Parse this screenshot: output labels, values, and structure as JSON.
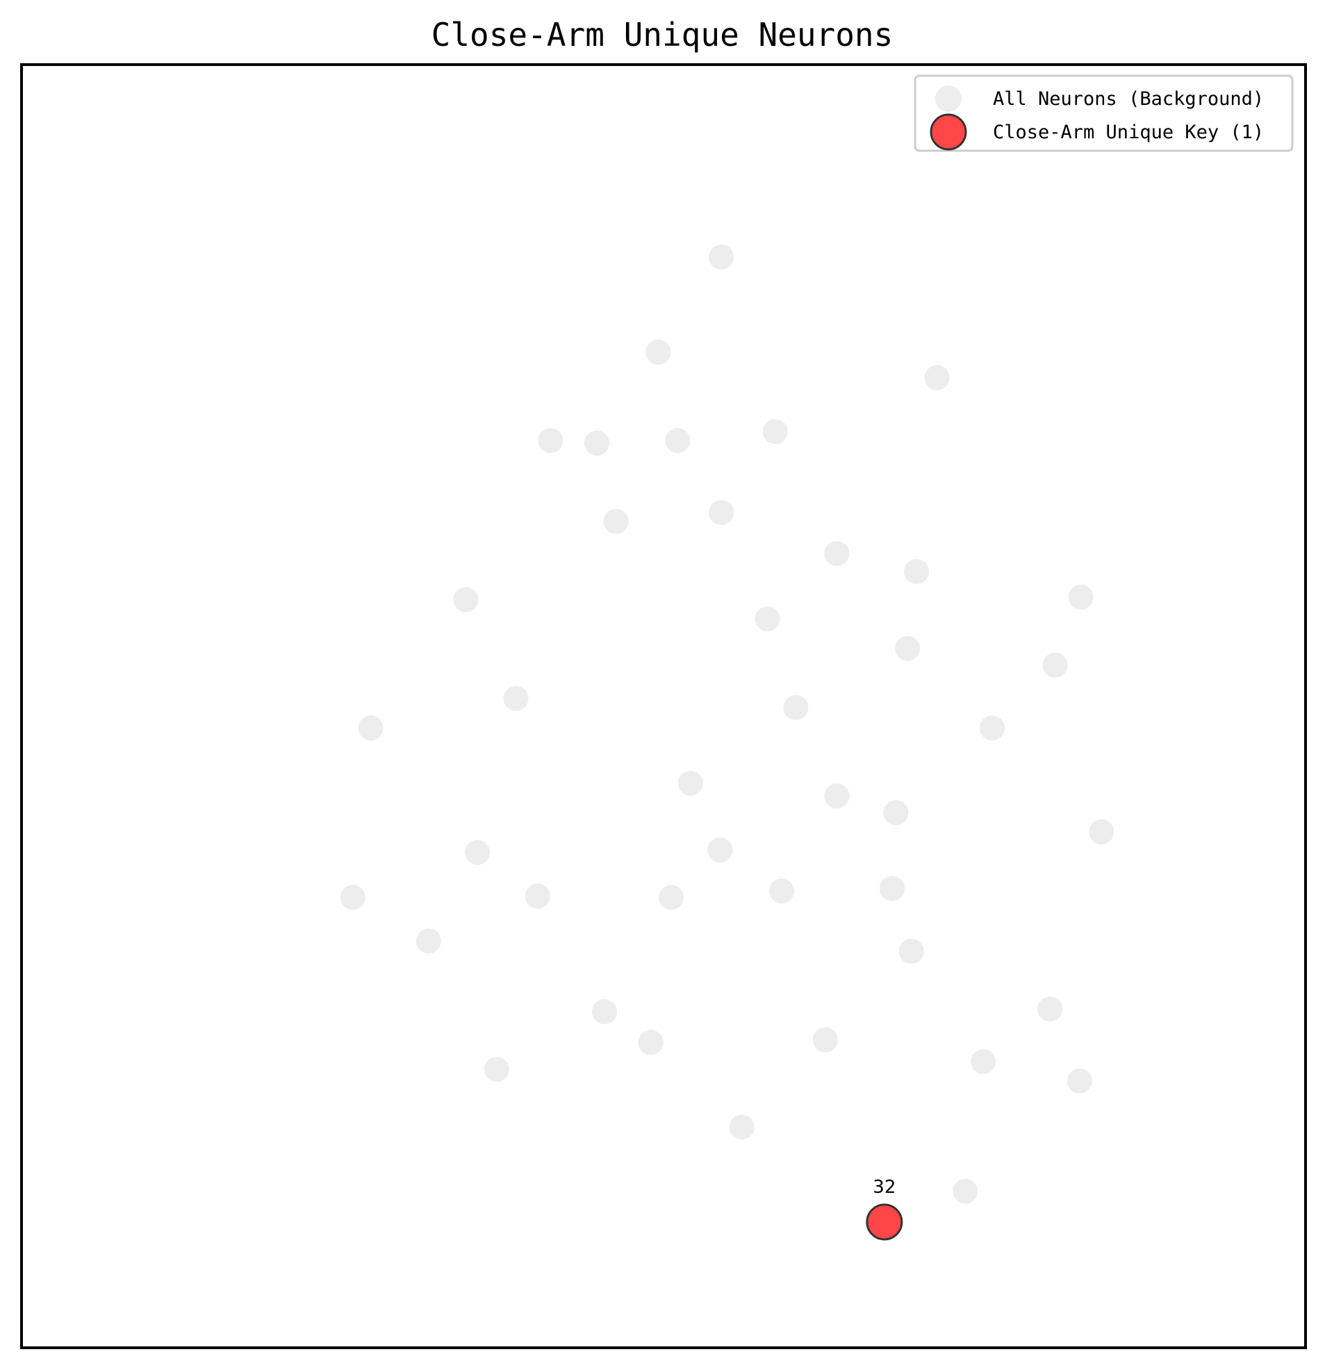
{
  "chart_data": {
    "type": "scatter",
    "title": "Close-Arm Unique Neurons",
    "xlabel": "",
    "ylabel": "",
    "xlim": [
      0,
      100
    ],
    "ylim": [
      0,
      100
    ],
    "grid": false,
    "axis_ticks": false,
    "legend_position": "top-right",
    "colors": {
      "background_points": "#ebebeb",
      "highlight_points": "#ff4747",
      "highlight_edge": "#333333",
      "frame": "#000000"
    },
    "series": [
      {
        "name": "All Neurons (Background)",
        "role": "background",
        "points": [
          {
            "x": 54.5,
            "y": 85.0
          },
          {
            "x": 49.6,
            "y": 77.6
          },
          {
            "x": 71.3,
            "y": 75.6
          },
          {
            "x": 41.2,
            "y": 70.7
          },
          {
            "x": 44.8,
            "y": 70.5
          },
          {
            "x": 51.1,
            "y": 70.7
          },
          {
            "x": 58.7,
            "y": 71.4
          },
          {
            "x": 46.3,
            "y": 64.4
          },
          {
            "x": 54.5,
            "y": 65.1
          },
          {
            "x": 63.5,
            "y": 61.9
          },
          {
            "x": 69.7,
            "y": 60.5
          },
          {
            "x": 34.6,
            "y": 58.3
          },
          {
            "x": 58.1,
            "y": 56.8
          },
          {
            "x": 69.0,
            "y": 54.5
          },
          {
            "x": 82.5,
            "y": 58.5
          },
          {
            "x": 80.5,
            "y": 53.2
          },
          {
            "x": 38.5,
            "y": 50.6
          },
          {
            "x": 27.2,
            "y": 48.3
          },
          {
            "x": 60.3,
            "y": 49.9
          },
          {
            "x": 75.6,
            "y": 48.3
          },
          {
            "x": 52.1,
            "y": 44.0
          },
          {
            "x": 63.5,
            "y": 43.0
          },
          {
            "x": 68.1,
            "y": 41.7
          },
          {
            "x": 54.4,
            "y": 38.8
          },
          {
            "x": 84.1,
            "y": 40.2
          },
          {
            "x": 35.5,
            "y": 38.6
          },
          {
            "x": 59.2,
            "y": 35.6
          },
          {
            "x": 67.8,
            "y": 35.8
          },
          {
            "x": 25.8,
            "y": 35.1
          },
          {
            "x": 40.2,
            "y": 35.2
          },
          {
            "x": 50.6,
            "y": 35.1
          },
          {
            "x": 31.7,
            "y": 31.7
          },
          {
            "x": 69.3,
            "y": 30.9
          },
          {
            "x": 80.1,
            "y": 26.4
          },
          {
            "x": 45.4,
            "y": 26.2
          },
          {
            "x": 49.0,
            "y": 23.8
          },
          {
            "x": 62.6,
            "y": 24.0
          },
          {
            "x": 74.9,
            "y": 22.3
          },
          {
            "x": 37.0,
            "y": 21.7
          },
          {
            "x": 82.4,
            "y": 20.8
          },
          {
            "x": 56.1,
            "y": 17.2
          },
          {
            "x": 73.5,
            "y": 12.2
          }
        ]
      },
      {
        "name": "Close-Arm Unique Key (1)",
        "role": "highlight",
        "points": [
          {
            "x": 67.2,
            "y": 9.8,
            "label": "32"
          }
        ]
      }
    ]
  }
}
